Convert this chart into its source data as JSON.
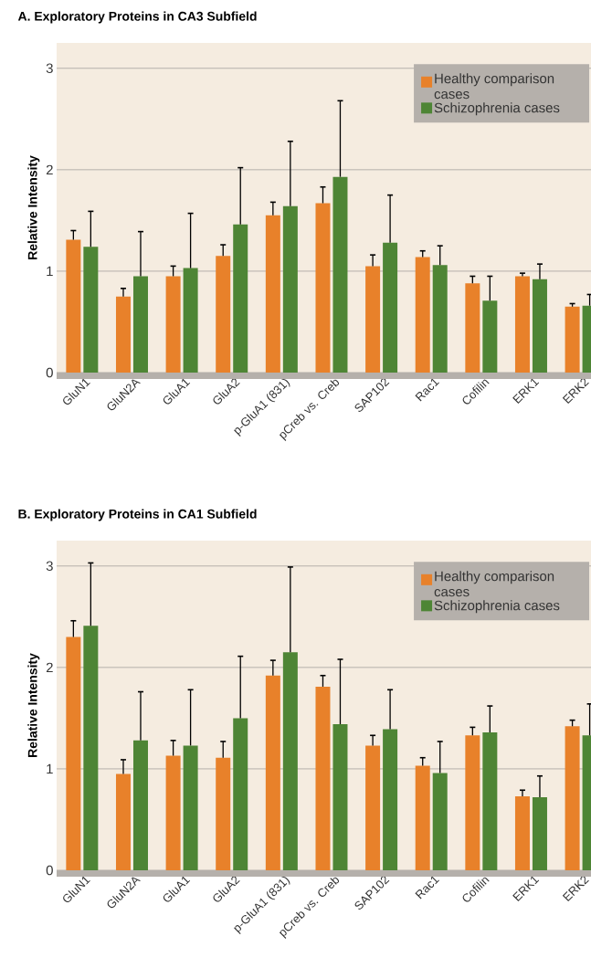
{
  "chart_data": [
    {
      "type": "bar",
      "title": "A. Exploratory Proteins in CA3 Subfield",
      "ylabel": "Relative Intensity",
      "categories": [
        "GluN1",
        "GluN2A",
        "GluA1",
        "GluA2",
        "p-GluA1 (831)",
        "pCreb vs. Creb",
        "SAP102",
        "Rac1",
        "Cofilin",
        "ERK1",
        "ERK2"
      ],
      "series": [
        {
          "name": "Healthy comparison cases",
          "color": "#e8812a",
          "values": [
            1.31,
            0.75,
            0.95,
            1.15,
            1.55,
            1.67,
            1.05,
            1.14,
            0.88,
            0.95,
            0.65
          ],
          "errors": [
            [
              1.31,
              1.4
            ],
            [
              0.75,
              0.83
            ],
            [
              0.95,
              1.05
            ],
            [
              1.15,
              1.26
            ],
            [
              1.55,
              1.68
            ],
            [
              1.67,
              1.83
            ],
            [
              1.05,
              1.16
            ],
            [
              1.14,
              1.2
            ],
            [
              0.88,
              0.95
            ],
            [
              0.95,
              0.98
            ],
            [
              0.65,
              0.68
            ]
          ]
        },
        {
          "name": "Schizophrenia cases",
          "color": "#4e8535",
          "values": [
            1.24,
            0.95,
            1.03,
            1.46,
            1.64,
            1.93,
            1.28,
            1.06,
            0.71,
            0.92,
            0.66
          ],
          "errors": [
            [
              1.24,
              1.59
            ],
            [
              0.95,
              1.39
            ],
            [
              1.03,
              1.57
            ],
            [
              1.46,
              2.02
            ],
            [
              1.64,
              2.28
            ],
            [
              1.93,
              2.68
            ],
            [
              1.28,
              1.75
            ],
            [
              1.06,
              1.25
            ],
            [
              0.71,
              0.95
            ],
            [
              0.92,
              1.07
            ],
            [
              0.66,
              0.77
            ]
          ]
        }
      ],
      "ylim": [
        0,
        3.25
      ],
      "yticks": [
        0,
        1,
        2,
        3
      ],
      "grid": "y",
      "legend": "top right"
    },
    {
      "type": "bar",
      "title": "B. Exploratory Proteins in CA1 Subfield",
      "ylabel": "Relative Intensity",
      "categories": [
        "GluN1",
        "GluN2A",
        "GluA1",
        "GluA2",
        "p-GluA1 (831)",
        "pCreb vs. Creb",
        "SAP102",
        "Rac1",
        "Cofilin",
        "ERK1",
        "ERK2"
      ],
      "series": [
        {
          "name": "Healthy comparison cases",
          "color": "#e8812a",
          "values": [
            2.3,
            0.95,
            1.13,
            1.11,
            1.92,
            1.81,
            1.23,
            1.03,
            1.33,
            0.73,
            1.42
          ],
          "errors": [
            [
              2.3,
              2.46
            ],
            [
              0.95,
              1.09
            ],
            [
              1.13,
              1.28
            ],
            [
              1.11,
              1.27
            ],
            [
              1.92,
              2.07
            ],
            [
              1.81,
              1.92
            ],
            [
              1.23,
              1.33
            ],
            [
              1.03,
              1.11
            ],
            [
              1.33,
              1.41
            ],
            [
              0.73,
              0.79
            ],
            [
              1.42,
              1.48
            ]
          ]
        },
        {
          "name": "Schizophrenia cases",
          "color": "#4e8535",
          "values": [
            2.41,
            1.28,
            1.23,
            1.5,
            2.15,
            1.44,
            1.39,
            0.96,
            1.36,
            0.72,
            1.33
          ],
          "errors": [
            [
              2.41,
              3.03
            ],
            [
              1.28,
              1.76
            ],
            [
              1.23,
              1.78
            ],
            [
              1.5,
              2.11
            ],
            [
              2.15,
              2.99
            ],
            [
              1.44,
              2.08
            ],
            [
              1.39,
              1.78
            ],
            [
              0.96,
              1.27
            ],
            [
              1.36,
              1.62
            ],
            [
              0.72,
              0.93
            ],
            [
              1.33,
              1.64
            ]
          ]
        }
      ],
      "ylim": [
        0,
        3.25
      ],
      "yticks": [
        0,
        1,
        2,
        3
      ],
      "grid": "y",
      "legend": "top right"
    }
  ]
}
